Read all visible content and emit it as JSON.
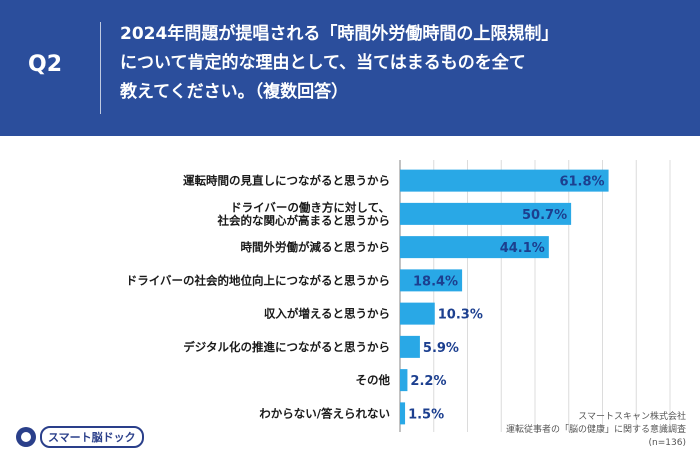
{
  "question": {
    "label": "Q2",
    "lines": [
      "2024年問題が提唱される「時間外労働時間の上限規制」",
      "について肯定的な理由として、当てはまるものを全て",
      "教えてください。（複数回答）"
    ]
  },
  "chart_data": {
    "type": "bar",
    "orientation": "horizontal",
    "categories": [
      [
        "運転時間の見直しにつながると思うから"
      ],
      [
        "ドライバーの働き方に対して、",
        "社会的な関心が高まると思うから"
      ],
      [
        "時間外労働が減ると思うから"
      ],
      [
        "ドライバーの社会的地位向上につながると思うから"
      ],
      [
        "収入が増えると思うから"
      ],
      [
        "デジタル化の推進につながると思うから"
      ],
      [
        "その他"
      ],
      [
        "わからない/答えられない"
      ]
    ],
    "values": [
      61.8,
      50.7,
      44.1,
      18.4,
      10.3,
      5.9,
      2.2,
      1.5
    ],
    "value_labels": [
      "61.8%",
      "50.7%",
      "44.1%",
      "18.4%",
      "10.3%",
      "5.9%",
      "2.2%",
      "1.5%"
    ],
    "xlim": [
      0,
      80
    ],
    "grid": true,
    "bar_color": "#29a8e6"
  },
  "footer": {
    "logo_text": "スマート脳ドック",
    "source_lines": [
      "スマートスキャン株式会社",
      "運転従事者の「脳の健康」に関する意識調査",
      "(n=136)"
    ]
  }
}
